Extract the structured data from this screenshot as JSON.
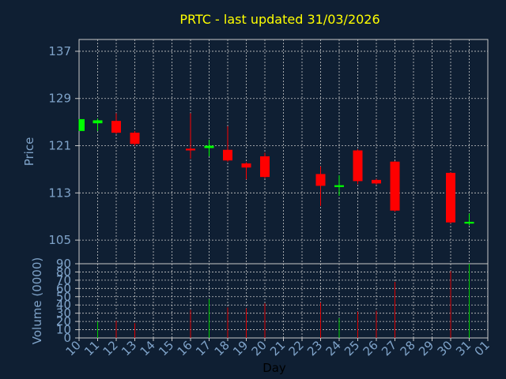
{
  "chart_data": [
    {
      "type": "candlestick",
      "title": "PRTC - last updated 31/03/2026",
      "ylabel": "Price",
      "ylim": [
        101,
        139
      ],
      "yticks": [
        105,
        113,
        121,
        129,
        137
      ],
      "grid": true,
      "categories": [
        "10",
        "11",
        "12",
        "13",
        "14",
        "15",
        "16",
        "17",
        "18",
        "19",
        "20",
        "21",
        "22",
        "23",
        "24",
        "25",
        "26",
        "27",
        "28",
        "29",
        "30",
        "31",
        "01"
      ],
      "candles": [
        {
          "day": "10",
          "open": 123.5,
          "close": 125.5,
          "high": 125.5,
          "low": 123.5
        },
        {
          "day": "11",
          "open": 124.8,
          "close": 125.3,
          "high": 125.6,
          "low": 123.5
        },
        {
          "day": "12",
          "open": 125.2,
          "close": 123.2,
          "high": 126.5,
          "low": 123.0
        },
        {
          "day": "13",
          "open": 123.2,
          "close": 121.3,
          "high": 123.5,
          "low": 121.0
        },
        {
          "day": "16",
          "open": 120.5,
          "close": 120.2,
          "high": 126.5,
          "low": 118.8
        },
        {
          "day": "17",
          "open": 120.6,
          "close": 121.0,
          "high": 122.0,
          "low": 119.2
        },
        {
          "day": "18",
          "open": 120.3,
          "close": 118.5,
          "high": 124.3,
          "low": 118.3
        },
        {
          "day": "19",
          "open": 118.0,
          "close": 117.3,
          "high": 118.2,
          "low": 115.3
        },
        {
          "day": "20",
          "open": 119.2,
          "close": 115.7,
          "high": 119.8,
          "low": 115.5
        },
        {
          "day": "23",
          "open": 116.2,
          "close": 114.2,
          "high": 117.5,
          "low": 110.8
        },
        {
          "day": "24",
          "open": 114.0,
          "close": 114.3,
          "high": 116.0,
          "low": 112.5
        },
        {
          "day": "25",
          "open": 120.2,
          "close": 115.0,
          "high": 120.4,
          "low": 114.5
        },
        {
          "day": "26",
          "open": 115.2,
          "close": 114.6,
          "high": 115.4,
          "low": 114.4
        },
        {
          "day": "27",
          "open": 118.3,
          "close": 110.0,
          "high": 118.4,
          "low": 109.8
        },
        {
          "day": "30",
          "open": 116.4,
          "close": 108.0,
          "high": 116.5,
          "low": 107.8
        },
        {
          "day": "31",
          "open": 107.8,
          "close": 108.1,
          "high": 109.5,
          "low": 107.5
        }
      ]
    },
    {
      "type": "bar",
      "ylabel": "Volume (0000)",
      "xlabel": "Day",
      "ylim": [
        0,
        90
      ],
      "yticks": [
        0,
        10,
        20,
        30,
        40,
        50,
        60,
        70,
        80,
        90
      ],
      "grid": true,
      "categories": [
        "10",
        "11",
        "12",
        "13",
        "14",
        "15",
        "16",
        "17",
        "18",
        "19",
        "20",
        "21",
        "22",
        "23",
        "24",
        "25",
        "26",
        "27",
        "28",
        "29",
        "30",
        "31",
        "01"
      ],
      "bars": [
        {
          "day": "11",
          "value": 20,
          "color": "#00cc00"
        },
        {
          "day": "12",
          "value": 21,
          "color": "#dd0000"
        },
        {
          "day": "13",
          "value": 18,
          "color": "#dd0000"
        },
        {
          "day": "16",
          "value": 34,
          "color": "#dd0000"
        },
        {
          "day": "17",
          "value": 47,
          "color": "#00cc00"
        },
        {
          "day": "18",
          "value": 37,
          "color": "#dd0000"
        },
        {
          "day": "19",
          "value": 36,
          "color": "#dd0000"
        },
        {
          "day": "20",
          "value": 42,
          "color": "#dd0000"
        },
        {
          "day": "23",
          "value": 43,
          "color": "#dd0000"
        },
        {
          "day": "24",
          "value": 24,
          "color": "#00cc00"
        },
        {
          "day": "25",
          "value": 32,
          "color": "#dd0000"
        },
        {
          "day": "26",
          "value": 33,
          "color": "#dd0000"
        },
        {
          "day": "27",
          "value": 68,
          "color": "#dd0000"
        },
        {
          "day": "30",
          "value": 81,
          "color": "#dd0000"
        },
        {
          "day": "31",
          "value": 90,
          "color": "#00cc00"
        }
      ]
    }
  ],
  "colors": {
    "background": "#0f1f33",
    "up": "#00ff00",
    "down": "#ff0000",
    "title": "#ffff00",
    "axis_text": "#7fa3c9",
    "grid": "#c8c8c8"
  }
}
